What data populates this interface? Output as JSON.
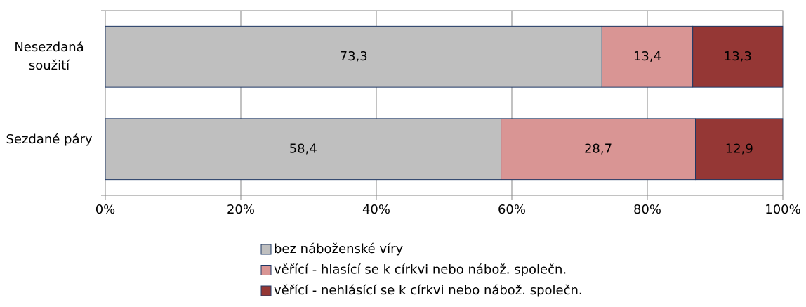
{
  "chart_data": {
    "type": "stacked_barh",
    "categories": [
      "Nesezdaná soužití",
      "Sezdané páry"
    ],
    "series": [
      {
        "name": "bez náboženské víry",
        "color": "#bfbfbf",
        "values": [
          73.3,
          58.4
        ],
        "value_labels": [
          "73,3",
          "58,4"
        ]
      },
      {
        "name": "věřící - hlasící se k církvi nebo nábož. společn.",
        "color": "#d99594",
        "values": [
          13.4,
          28.7
        ],
        "value_labels": [
          "13,4",
          "28,7"
        ]
      },
      {
        "name": "věřící - nehlásící se k církvi nebo nábož. společn.",
        "color": "#953735",
        "values": [
          13.3,
          12.9
        ],
        "value_labels": [
          "13,3",
          "12,9"
        ]
      }
    ],
    "xlim": [
      0,
      100
    ],
    "xticks": [
      {
        "value": 0,
        "label": "0%"
      },
      {
        "value": 20,
        "label": "20%"
      },
      {
        "value": 40,
        "label": "40%"
      },
      {
        "value": 60,
        "label": "60%"
      },
      {
        "value": 80,
        "label": "80%"
      },
      {
        "value": 100,
        "label": "100%"
      }
    ],
    "grid": true
  }
}
